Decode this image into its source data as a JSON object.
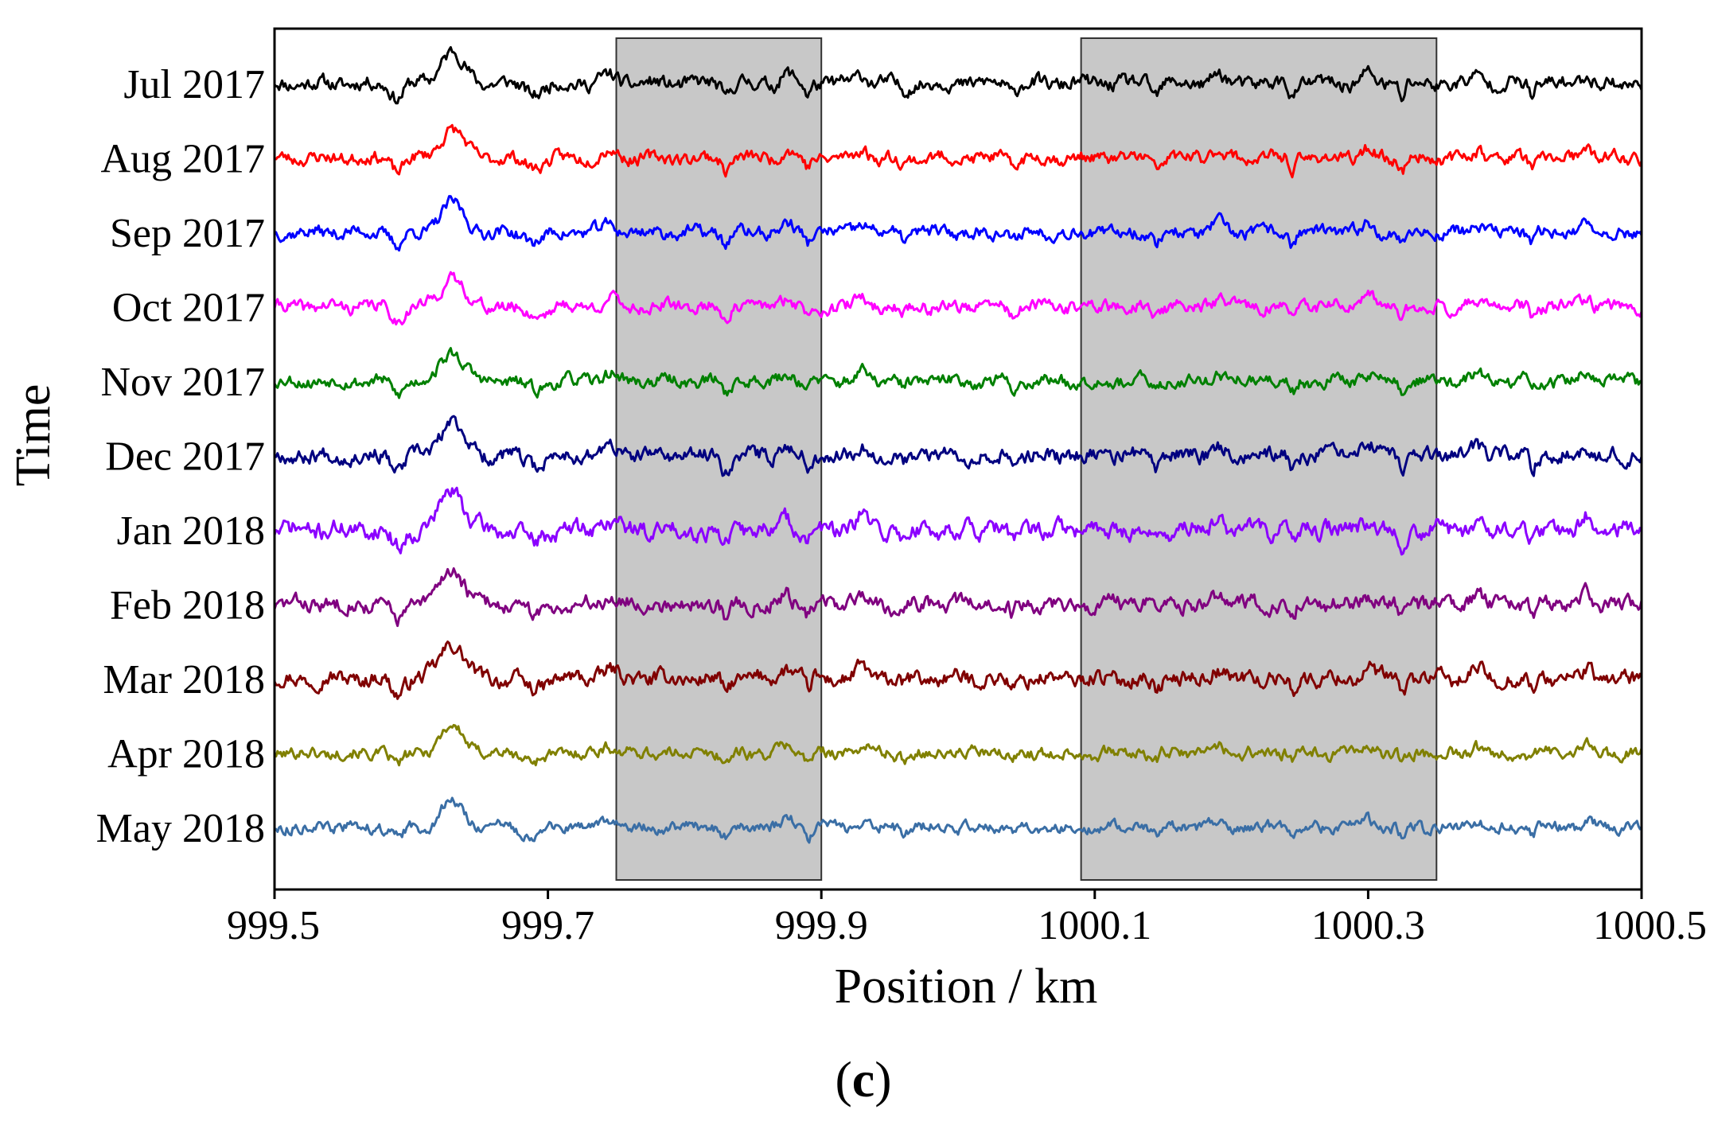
{
  "chart_data": {
    "type": "line",
    "title": "",
    "xlabel": "Position / km",
    "ylabel": "Time",
    "panel_label_open": "(",
    "panel_label_letter": "c",
    "panel_label_close": ")",
    "xlim": [
      999.5,
      1000.5
    ],
    "x_ticks": [
      999.5,
      999.7,
      999.9,
      1000.1,
      1000.3,
      1000.5
    ],
    "x_tick_labels": [
      "999.5",
      "999.7",
      "999.9",
      "1000.1",
      "1000.3",
      "1000.5"
    ],
    "grid": false,
    "shaded_regions": [
      {
        "x_start": 999.75,
        "x_end": 999.9,
        "color": "#c8c8c8"
      },
      {
        "x_start": 1000.09,
        "x_end": 1000.35,
        "color": "#c8c8c8"
      }
    ],
    "series": [
      {
        "name": "Jul 2017",
        "color": "#000000",
        "seed": 11,
        "amp_scale": 1.0
      },
      {
        "name": "Aug 2017",
        "color": "#ff0000",
        "seed": 23,
        "amp_scale": 0.9
      },
      {
        "name": "Sep 2017",
        "color": "#0000ff",
        "seed": 37,
        "amp_scale": 0.9
      },
      {
        "name": "Oct 2017",
        "color": "#ff00ff",
        "seed": 41,
        "amp_scale": 0.9
      },
      {
        "name": "Nov 2017",
        "color": "#008000",
        "seed": 53,
        "amp_scale": 0.9
      },
      {
        "name": "Dec 2017",
        "color": "#000080",
        "seed": 67,
        "amp_scale": 1.05
      },
      {
        "name": "Jan 2018",
        "color": "#8b00ff",
        "seed": 71,
        "amp_scale": 1.25
      },
      {
        "name": "Feb 2018",
        "color": "#800080",
        "seed": 83,
        "amp_scale": 1.1
      },
      {
        "name": "Mar 2018",
        "color": "#800000",
        "seed": 97,
        "amp_scale": 1.1
      },
      {
        "name": "Apr 2018",
        "color": "#808000",
        "seed": 101,
        "amp_scale": 0.85
      },
      {
        "name": "May 2018",
        "color": "#3a6ea5",
        "seed": 113,
        "amp_scale": 0.8
      }
    ],
    "features_km": [
      {
        "x": 999.63,
        "amp": 1.0,
        "width": 0.012
      },
      {
        "x": 999.59,
        "amp": -0.45,
        "width": 0.006
      },
      {
        "x": 999.69,
        "amp": -0.3,
        "width": 0.01
      },
      {
        "x": 999.745,
        "amp": 0.25,
        "width": 0.008
      },
      {
        "x": 999.83,
        "amp": -0.4,
        "width": 0.004
      },
      {
        "x": 999.875,
        "amp": 0.3,
        "width": 0.006
      },
      {
        "x": 999.89,
        "amp": -0.35,
        "width": 0.003
      },
      {
        "x": 999.93,
        "amp": 0.3,
        "width": 0.006
      },
      {
        "x": 999.96,
        "amp": -0.2,
        "width": 0.005
      },
      {
        "x": 1000.04,
        "amp": -0.3,
        "width": 0.004
      },
      {
        "x": 1000.145,
        "amp": -0.35,
        "width": 0.004
      },
      {
        "x": 1000.19,
        "amp": 0.3,
        "width": 0.006
      },
      {
        "x": 1000.245,
        "amp": -0.4,
        "width": 0.003
      },
      {
        "x": 1000.3,
        "amp": 0.3,
        "width": 0.006
      },
      {
        "x": 1000.325,
        "amp": -0.45,
        "width": 0.003
      },
      {
        "x": 1000.38,
        "amp": 0.25,
        "width": 0.006
      },
      {
        "x": 1000.42,
        "amp": -0.35,
        "width": 0.003
      },
      {
        "x": 1000.46,
        "amp": 0.3,
        "width": 0.005
      }
    ]
  }
}
